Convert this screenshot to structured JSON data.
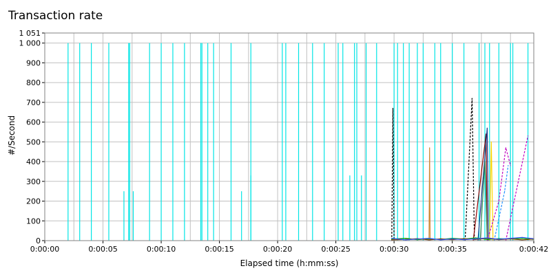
{
  "chart_data": {
    "type": "line",
    "title": "Transaction rate",
    "xlabel": "Elapsed time (h:mm:ss)",
    "ylabel": "#/Second",
    "x_unit": "seconds",
    "xlim": [
      0,
      42
    ],
    "ylim": [
      0,
      1051
    ],
    "y_ticks": [
      0,
      100,
      200,
      300,
      400,
      500,
      600,
      700,
      800,
      900,
      1000,
      1051
    ],
    "y_tick_labels": [
      "0",
      "100",
      "200",
      "300",
      "400",
      "500",
      "600",
      "700",
      "800",
      "900",
      "1 000",
      "1 051"
    ],
    "x_ticks": [
      0,
      5,
      10,
      15,
      20,
      25,
      30,
      35,
      42
    ],
    "x_tick_labels": [
      "0:00:00",
      "0:00:05",
      "0:00:10",
      "0:00:15",
      "0:00:20",
      "0:00:25",
      "0:00:30",
      "0:00:35",
      "0:00:42"
    ],
    "grid": true,
    "legend": "none",
    "series": [
      {
        "color": "#00e5e5",
        "style": "spikes",
        "points": [
          [
            2.0,
            1000
          ],
          [
            3.0,
            1000
          ],
          [
            4.0,
            1000
          ],
          [
            5.5,
            1000
          ],
          [
            6.8,
            250
          ],
          [
            7.2,
            1000
          ],
          [
            7.3,
            1000
          ],
          [
            7.6,
            250
          ],
          [
            9.0,
            1000
          ],
          [
            10.0,
            1000
          ],
          [
            11.0,
            1000
          ],
          [
            12.0,
            1000
          ],
          [
            13.4,
            1000
          ],
          [
            13.5,
            1000
          ],
          [
            14.0,
            1000
          ],
          [
            14.5,
            1000
          ],
          [
            16.0,
            1000
          ],
          [
            16.9,
            250
          ],
          [
            17.7,
            330
          ],
          [
            17.7,
            1000
          ],
          [
            20.4,
            1000
          ],
          [
            20.7,
            1000
          ],
          [
            21.8,
            1000
          ],
          [
            23.0,
            1000
          ],
          [
            24.0,
            1000
          ],
          [
            25.2,
            1000
          ],
          [
            25.6,
            1000
          ],
          [
            26.2,
            330
          ],
          [
            26.6,
            1000
          ],
          [
            26.8,
            1000
          ],
          [
            27.2,
            330
          ],
          [
            27.6,
            1000
          ],
          [
            28.5,
            1000
          ],
          [
            30.0,
            1000
          ],
          [
            30.3,
            1000
          ],
          [
            30.8,
            1000
          ],
          [
            31.3,
            1000
          ],
          [
            32.0,
            1000
          ],
          [
            32.5,
            1000
          ],
          [
            33.5,
            1000
          ],
          [
            34.0,
            1000
          ],
          [
            35.0,
            1000
          ],
          [
            36.0,
            1000
          ],
          [
            37.3,
            1000
          ],
          [
            37.8,
            1000
          ],
          [
            38.2,
            1000
          ],
          [
            39.0,
            1000
          ],
          [
            40.0,
            1000
          ],
          [
            40.2,
            1000
          ],
          [
            41.5,
            1000
          ]
        ]
      },
      {
        "color": "#000000",
        "style": "dashed",
        "points": [
          [
            29.8,
            0
          ],
          [
            29.9,
            670
          ],
          [
            30.0,
            0
          ]
        ]
      },
      {
        "color": "#000000",
        "style": "dashed",
        "points": [
          [
            36.1,
            0
          ],
          [
            36.7,
            720
          ],
          [
            36.9,
            0
          ]
        ]
      },
      {
        "color": "#cc8833",
        "style": "solid",
        "points": [
          [
            33.0,
            0
          ],
          [
            33.05,
            470
          ],
          [
            33.1,
            0
          ]
        ]
      },
      {
        "color": "#8b0000",
        "style": "solid",
        "points": [
          [
            36.8,
            0
          ],
          [
            37.9,
            540
          ],
          [
            38.0,
            0
          ]
        ]
      },
      {
        "color": "#1b3a8a",
        "style": "solid",
        "points": [
          [
            37.2,
            0
          ],
          [
            38.0,
            570
          ],
          [
            38.1,
            0
          ]
        ]
      },
      {
        "color": "#2e8b57",
        "style": "solid",
        "points": [
          [
            37.4,
            0
          ],
          [
            37.8,
            400
          ],
          [
            38.0,
            0
          ]
        ]
      },
      {
        "color": "#ffd700",
        "style": "solid",
        "points": [
          [
            38.2,
            0
          ],
          [
            38.35,
            500
          ],
          [
            38.5,
            0
          ]
        ]
      },
      {
        "color": "#c000c0",
        "style": "dashed",
        "points": [
          [
            38.0,
            0
          ],
          [
            39.0,
            200
          ],
          [
            39.6,
            470
          ],
          [
            40.0,
            380
          ]
        ]
      },
      {
        "color": "#c000c0",
        "style": "dashed",
        "points": [
          [
            39.6,
            0
          ],
          [
            41.5,
            530
          ]
        ]
      },
      {
        "color": "#1e90ff",
        "style": "dashed",
        "points": [
          [
            38.6,
            0
          ],
          [
            39.5,
            250
          ],
          [
            39.8,
            380
          ]
        ]
      },
      {
        "color": "#00aa00",
        "style": "solid",
        "points": [
          [
            29.8,
            8
          ],
          [
            31,
            12
          ],
          [
            32,
            5
          ],
          [
            33,
            10
          ],
          [
            34,
            6
          ],
          [
            35,
            12
          ],
          [
            36,
            8
          ],
          [
            37,
            14
          ],
          [
            38,
            6
          ],
          [
            39,
            10
          ],
          [
            40,
            8
          ],
          [
            41,
            12
          ],
          [
            42,
            6
          ]
        ]
      },
      {
        "color": "#7b3f00",
        "style": "solid",
        "points": [
          [
            29.8,
            4
          ],
          [
            31,
            6
          ],
          [
            32,
            10
          ],
          [
            33,
            4
          ],
          [
            34,
            9
          ],
          [
            35,
            5
          ],
          [
            36,
            10
          ],
          [
            37,
            6
          ],
          [
            38,
            12
          ],
          [
            39,
            5
          ],
          [
            40,
            9
          ],
          [
            41,
            4
          ],
          [
            42,
            8
          ]
        ]
      },
      {
        "color": "#3355ff",
        "style": "solid",
        "points": [
          [
            29.8,
            12
          ],
          [
            31,
            4
          ],
          [
            32,
            8
          ],
          [
            33,
            12
          ],
          [
            34,
            4
          ],
          [
            35,
            9
          ],
          [
            36,
            5
          ],
          [
            37,
            9
          ],
          [
            38,
            14
          ],
          [
            39,
            7
          ],
          [
            40,
            12
          ],
          [
            41,
            16
          ],
          [
            42,
            10
          ]
        ]
      }
    ]
  }
}
